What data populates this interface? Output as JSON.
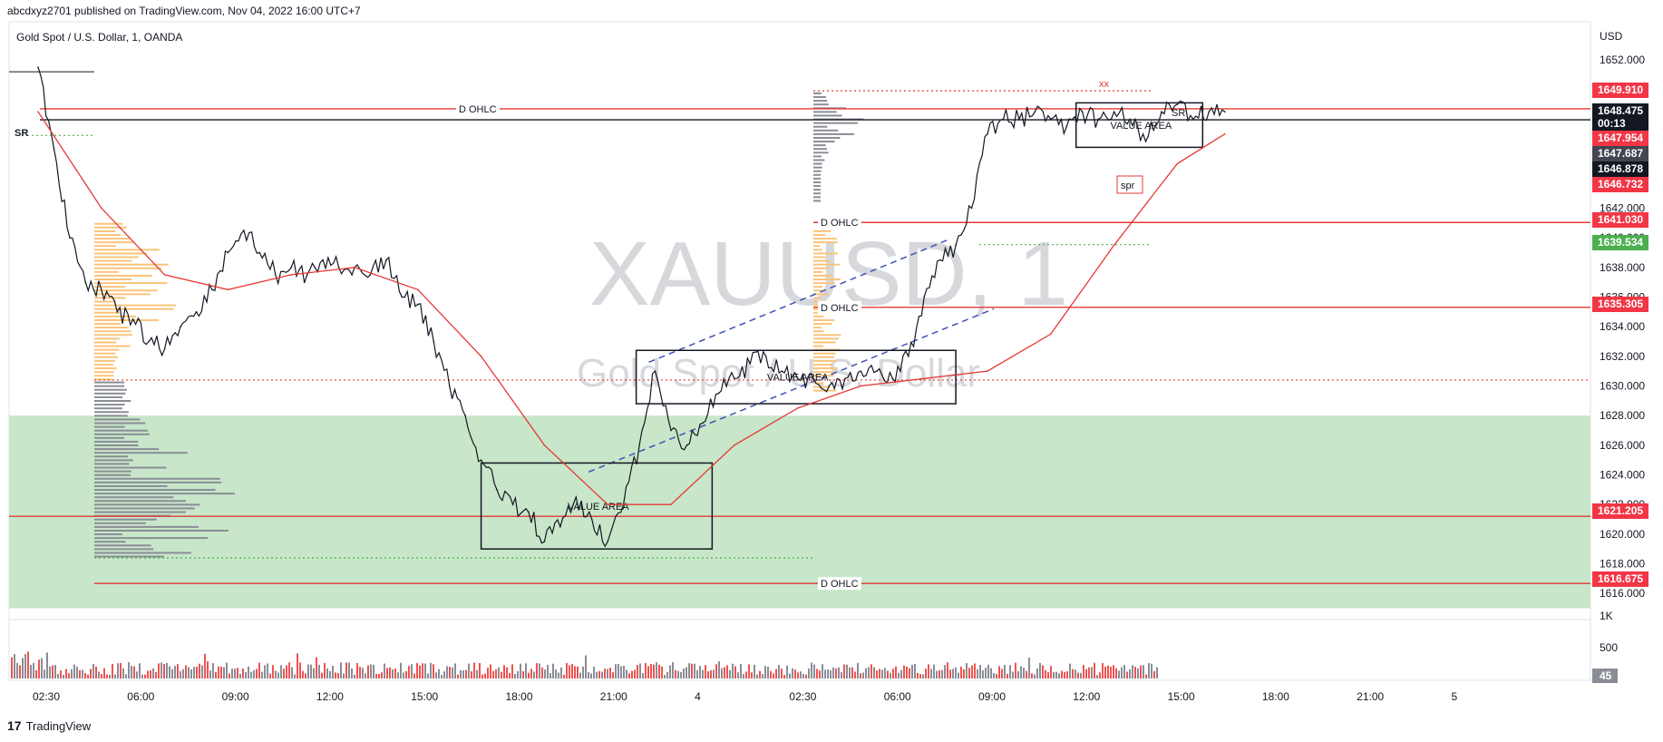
{
  "header": {
    "publish_line": "abcdxyz2701 published on TradingView.com, Nov 04, 2022 16:00 UTC+7",
    "symbol_title": "Gold Spot / U.S. Dollar, 1, OANDA",
    "currency": "USD"
  },
  "watermark": {
    "ticker": "XAUUSD, 1",
    "name": "Gold Spot / U.S. Dollar"
  },
  "footer": {
    "brand": "TradingView",
    "logo_glyph": "17"
  },
  "colors": {
    "up_candle": "#131722",
    "ma_line": "#e53935",
    "level_line": "#e53935",
    "zone_fill": "#c8e6c9",
    "profile_orange": "#f9c47a",
    "profile_gray": "#8a8d96",
    "trend_dash": "#3f51b5",
    "green_tag": "#4caf50",
    "black_tag": "#131722",
    "gray_tag": "#434651"
  },
  "chart_data": {
    "type": "line",
    "title": "Gold Spot / U.S. Dollar, 1, OANDA",
    "xlabel": "",
    "ylabel": "USD",
    "ylim": [
      1614.0,
      1654.0
    ],
    "grid": false,
    "x_ticks": [
      "02:30",
      "06:00",
      "09:00",
      "12:00",
      "15:00",
      "18:00",
      "21:00",
      "4",
      "02:30",
      "06:00",
      "09:00",
      "12:00",
      "15:00",
      "18:00",
      "21:00",
      "5"
    ],
    "y_ticks": [
      "1652.000",
      "1650.000",
      "1648.000",
      "1646.000",
      "1644.000",
      "1642.000",
      "1640.000",
      "1638.000",
      "1636.000",
      "1634.000",
      "1632.000",
      "1630.000",
      "1628.000",
      "1626.000",
      "1624.000",
      "1622.000",
      "1620.000",
      "1618.000",
      "1616.000"
    ],
    "series": [
      {
        "name": "",
        "x": [
          "02:00",
          "02:30",
          "03:00",
          "03:30",
          "04:00",
          "04:30",
          "05:00",
          "05:30",
          "06:00",
          "06:30",
          "07:00",
          "07:30",
          "08:00",
          "08:30",
          "09:00",
          "09:30",
          "10:00",
          "10:30",
          "11:00",
          "11:30",
          "12:00",
          "12:30",
          "13:00",
          "13:30",
          "14:00",
          "14:30",
          "15:00",
          "15:30",
          "16:00",
          "16:30",
          "17:00",
          "17:30",
          "18:00",
          "18:30",
          "19:00",
          "19:30",
          "20:00",
          "20:30",
          "21:00",
          "21:30",
          "22:00",
          "22:30",
          "23:00",
          "23:30",
          "00:00",
          "00:30",
          "01:00",
          "01:30",
          "02:00",
          "02:30",
          "03:00",
          "03:30",
          "04:00",
          "04:30",
          "05:00",
          "05:30",
          "06:00",
          "06:30",
          "07:00",
          "07:30",
          "08:00",
          "08:30",
          "09:00",
          "09:30",
          "10:00",
          "10:30",
          "11:00",
          "11:30",
          "12:00",
          "12:30",
          "13:00",
          "13:30",
          "14:00",
          "14:30",
          "15:00",
          "15:30"
        ],
        "values": [
          1651.5,
          1646.0,
          1640.0,
          1637.0,
          1636.5,
          1635.0,
          1634.5,
          1633.0,
          1632.5,
          1634.0,
          1635.0,
          1636.5,
          1639.0,
          1640.5,
          1639.0,
          1637.5,
          1638.0,
          1637.5,
          1638.5,
          1638.0,
          1638.0,
          1637.5,
          1638.5,
          1636.0,
          1635.5,
          1633.0,
          1630.0,
          1628.0,
          1625.0,
          1623.0,
          1622.0,
          1621.5,
          1619.5,
          1620.5,
          1622.5,
          1621.0,
          1619.5,
          1622.0,
          1626.0,
          1631.0,
          1627.0,
          1626.0,
          1627.5,
          1629.5,
          1630.5,
          1631.5,
          1632.0,
          1631.0,
          1630.5,
          1630.5,
          1630.0,
          1630.5,
          1631.0,
          1631.0,
          1630.5,
          1632.0,
          1636.0,
          1638.5,
          1639.5,
          1642.0,
          1647.0,
          1648.0,
          1648.0,
          1648.5,
          1648.0,
          1647.5,
          1648.5,
          1648.0,
          1648.5,
          1648.0,
          1646.5,
          1648.5,
          1649.0,
          1648.0,
          1648.5,
          1648.5
        ]
      },
      {
        "name": "",
        "x": [
          "02:00",
          "04:00",
          "06:00",
          "08:00",
          "10:00",
          "12:00",
          "14:00",
          "16:00",
          "18:00",
          "20:00",
          "22:00",
          "00:00",
          "02:00",
          "04:00",
          "06:00",
          "08:00",
          "10:00",
          "12:00",
          "14:00",
          "15:30"
        ],
        "values": [
          1648.5,
          1642.0,
          1637.5,
          1636.5,
          1637.5,
          1638.0,
          1636.5,
          1632.0,
          1626.0,
          1622.0,
          1622.0,
          1626.0,
          1628.5,
          1630.0,
          1630.5,
          1631.0,
          1633.5,
          1639.5,
          1645.0,
          1647.0
        ]
      }
    ],
    "volume": {
      "ylabel": "1K",
      "ticks": [
        "1K",
        "500"
      ],
      "last": "45"
    },
    "levels": [
      {
        "label": "D OHLC",
        "price": 1648.7,
        "style": "solid",
        "color": "#e53935"
      },
      {
        "label": "D OHLC",
        "price": 1641.03,
        "style": "solid",
        "color": "#e53935"
      },
      {
        "label": "D OHLC",
        "price": 1635.305,
        "style": "solid",
        "color": "#e53935"
      },
      {
        "label": "D OHLC",
        "price": 1616.675,
        "style": "solid",
        "color": "#e53935"
      },
      {
        "label": "",
        "price": 1621.205,
        "style": "solid",
        "color": "#e53935"
      },
      {
        "label": "",
        "price": 1647.954,
        "style": "solid",
        "color": "#131722"
      },
      {
        "label": "",
        "price": 1630.4,
        "style": "dotted",
        "color": "#e53935"
      },
      {
        "label": "",
        "price": 1649.91,
        "style": "dotted",
        "color": "#e53935"
      },
      {
        "label": "",
        "price": 1646.9,
        "style": "dotted",
        "color": "#4caf50"
      },
      {
        "label": "",
        "price": 1639.534,
        "style": "dotted",
        "color": "#4caf50"
      },
      {
        "label": "",
        "price": 1618.4,
        "style": "dotted",
        "color": "#4caf50"
      }
    ],
    "zone": {
      "from": 1615.0,
      "to": 1628.0
    },
    "value_areas": [
      {
        "label": "VALUE AREA",
        "from": 1619.0,
        "to": 1624.8
      },
      {
        "label": "VALUE AREA",
        "from": 1628.8,
        "to": 1632.4
      },
      {
        "label": "VALUE AREA",
        "from": 1646.1,
        "to": 1649.1
      }
    ],
    "annotations": [
      "SR",
      "SR",
      "spr",
      "xx"
    ],
    "price_tags": [
      {
        "value": "1649.910",
        "kind": "red"
      },
      {
        "value": "1648.475",
        "sub": "00:13",
        "kind": "black"
      },
      {
        "value": "1647.954",
        "kind": "red"
      },
      {
        "value": "1647.687",
        "kind": "gray"
      },
      {
        "value": "1646.878",
        "kind": "black"
      },
      {
        "value": "1646.732",
        "kind": "red"
      },
      {
        "value": "1641.030",
        "kind": "red"
      },
      {
        "value": "1639.534",
        "kind": "green"
      },
      {
        "value": "1635.305",
        "kind": "red"
      },
      {
        "value": "1621.205",
        "kind": "red"
      },
      {
        "value": "1616.675",
        "kind": "red"
      }
    ]
  }
}
